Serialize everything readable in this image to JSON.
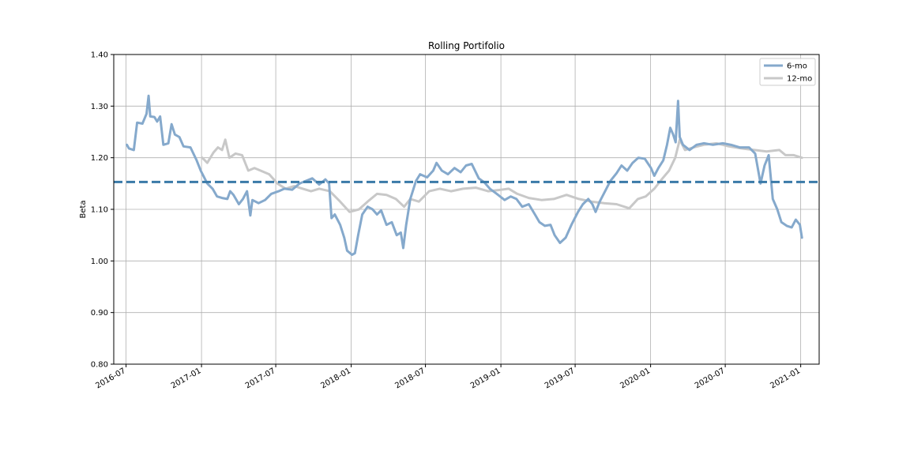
{
  "chart_data": {
    "type": "line",
    "title": "Rolling Portifolio",
    "xlabel": "",
    "ylabel": "Beta",
    "ylim": [
      0.8,
      1.4
    ],
    "xlim": [
      "2016-06-01",
      "2021-02-15"
    ],
    "grid": true,
    "legend_position": "top-right",
    "y_ticks": [
      "0.80",
      "0.90",
      "1.00",
      "1.10",
      "1.20",
      "1.30",
      "1.40"
    ],
    "x_ticks": [
      "2016-07",
      "2017-01",
      "2017-07",
      "2018-01",
      "2018-07",
      "2019-01",
      "2019-07",
      "2020-01",
      "2020-07",
      "2021-01"
    ],
    "mean_line": {
      "value": 1.153,
      "color": "#3a7aa8",
      "style": "dashed"
    },
    "series": [
      {
        "name": "6-mo",
        "color": "#85a9cc",
        "points": [
          [
            "2016-07-03",
            1.225
          ],
          [
            "2016-07-08",
            1.218
          ],
          [
            "2016-07-20",
            1.215
          ],
          [
            "2016-07-28",
            1.268
          ],
          [
            "2016-08-10",
            1.266
          ],
          [
            "2016-08-20",
            1.285
          ],
          [
            "2016-08-25",
            1.32
          ],
          [
            "2016-08-29",
            1.28
          ],
          [
            "2016-09-08",
            1.279
          ],
          [
            "2016-09-15",
            1.27
          ],
          [
            "2016-09-22",
            1.28
          ],
          [
            "2016-09-30",
            1.225
          ],
          [
            "2016-10-12",
            1.228
          ],
          [
            "2016-10-20",
            1.265
          ],
          [
            "2016-10-28",
            1.245
          ],
          [
            "2016-11-08",
            1.24
          ],
          [
            "2016-11-18",
            1.222
          ],
          [
            "2016-12-05",
            1.22
          ],
          [
            "2016-12-20",
            1.195
          ],
          [
            "2016-12-30",
            1.175
          ],
          [
            "2017-01-15",
            1.15
          ],
          [
            "2017-01-28",
            1.14
          ],
          [
            "2017-02-08",
            1.125
          ],
          [
            "2017-02-20",
            1.122
          ],
          [
            "2017-03-05",
            1.12
          ],
          [
            "2017-03-12",
            1.135
          ],
          [
            "2017-03-20",
            1.128
          ],
          [
            "2017-04-02",
            1.11
          ],
          [
            "2017-04-12",
            1.12
          ],
          [
            "2017-04-22",
            1.135
          ],
          [
            "2017-04-30",
            1.088
          ],
          [
            "2017-05-05",
            1.118
          ],
          [
            "2017-05-20",
            1.112
          ],
          [
            "2017-06-05",
            1.118
          ],
          [
            "2017-06-20",
            1.13
          ],
          [
            "2017-07-08",
            1.135
          ],
          [
            "2017-07-22",
            1.14
          ],
          [
            "2017-08-10",
            1.138
          ],
          [
            "2017-08-28",
            1.15
          ],
          [
            "2017-09-12",
            1.155
          ],
          [
            "2017-09-28",
            1.16
          ],
          [
            "2017-10-15",
            1.148
          ],
          [
            "2017-10-30",
            1.158
          ],
          [
            "2017-11-08",
            1.15
          ],
          [
            "2017-11-14",
            1.083
          ],
          [
            "2017-11-22",
            1.09
          ],
          [
            "2017-12-05",
            1.07
          ],
          [
            "2017-12-15",
            1.045
          ],
          [
            "2017-12-22",
            1.02
          ],
          [
            "2018-01-03",
            1.012
          ],
          [
            "2018-01-10",
            1.015
          ],
          [
            "2018-01-18",
            1.05
          ],
          [
            "2018-01-28",
            1.09
          ],
          [
            "2018-02-10",
            1.105
          ],
          [
            "2018-02-22",
            1.1
          ],
          [
            "2018-03-05",
            1.09
          ],
          [
            "2018-03-15",
            1.098
          ],
          [
            "2018-03-28",
            1.07
          ],
          [
            "2018-04-10",
            1.075
          ],
          [
            "2018-04-22",
            1.05
          ],
          [
            "2018-05-02",
            1.055
          ],
          [
            "2018-05-08",
            1.025
          ],
          [
            "2018-05-15",
            1.07
          ],
          [
            "2018-05-25",
            1.12
          ],
          [
            "2018-06-08",
            1.155
          ],
          [
            "2018-06-18",
            1.168
          ],
          [
            "2018-07-05",
            1.162
          ],
          [
            "2018-07-20",
            1.175
          ],
          [
            "2018-07-28",
            1.19
          ],
          [
            "2018-08-10",
            1.175
          ],
          [
            "2018-08-25",
            1.168
          ],
          [
            "2018-09-10",
            1.18
          ],
          [
            "2018-09-25",
            1.172
          ],
          [
            "2018-10-08",
            1.185
          ],
          [
            "2018-10-22",
            1.188
          ],
          [
            "2018-11-08",
            1.16
          ],
          [
            "2018-11-22",
            1.152
          ],
          [
            "2018-12-05",
            1.14
          ],
          [
            "2018-12-22",
            1.13
          ],
          [
            "2019-01-10",
            1.118
          ],
          [
            "2019-01-25",
            1.125
          ],
          [
            "2019-02-08",
            1.12
          ],
          [
            "2019-02-22",
            1.105
          ],
          [
            "2019-03-10",
            1.11
          ],
          [
            "2019-03-25",
            1.09
          ],
          [
            "2019-04-05",
            1.075
          ],
          [
            "2019-04-18",
            1.068
          ],
          [
            "2019-05-02",
            1.07
          ],
          [
            "2019-05-12",
            1.05
          ],
          [
            "2019-05-25",
            1.035
          ],
          [
            "2019-06-08",
            1.045
          ],
          [
            "2019-06-22",
            1.07
          ],
          [
            "2019-07-08",
            1.095
          ],
          [
            "2019-07-20",
            1.11
          ],
          [
            "2019-08-02",
            1.12
          ],
          [
            "2019-08-12",
            1.11
          ],
          [
            "2019-08-20",
            1.095
          ],
          [
            "2019-08-30",
            1.115
          ],
          [
            "2019-09-12",
            1.135
          ],
          [
            "2019-09-25",
            1.155
          ],
          [
            "2019-10-10",
            1.17
          ],
          [
            "2019-10-22",
            1.185
          ],
          [
            "2019-11-05",
            1.175
          ],
          [
            "2019-11-18",
            1.19
          ],
          [
            "2019-12-02",
            1.2
          ],
          [
            "2019-12-18",
            1.198
          ],
          [
            "2020-01-02",
            1.18
          ],
          [
            "2020-01-10",
            1.165
          ],
          [
            "2020-01-20",
            1.18
          ],
          [
            "2020-02-01",
            1.195
          ],
          [
            "2020-02-10",
            1.225
          ],
          [
            "2020-02-18",
            1.258
          ],
          [
            "2020-02-25",
            1.245
          ],
          [
            "2020-03-02",
            1.23
          ],
          [
            "2020-03-08",
            1.31
          ],
          [
            "2020-03-12",
            1.24
          ],
          [
            "2020-03-20",
            1.225
          ],
          [
            "2020-04-05",
            1.215
          ],
          [
            "2020-04-22",
            1.225
          ],
          [
            "2020-05-10",
            1.228
          ],
          [
            "2020-06-01",
            1.225
          ],
          [
            "2020-06-25",
            1.228
          ],
          [
            "2020-07-15",
            1.225
          ],
          [
            "2020-08-05",
            1.22
          ],
          [
            "2020-08-28",
            1.22
          ],
          [
            "2020-09-12",
            1.208
          ],
          [
            "2020-09-25",
            1.15
          ],
          [
            "2020-10-05",
            1.185
          ],
          [
            "2020-10-15",
            1.205
          ],
          [
            "2020-10-25",
            1.12
          ],
          [
            "2020-11-05",
            1.1
          ],
          [
            "2020-11-15",
            1.075
          ],
          [
            "2020-11-28",
            1.068
          ],
          [
            "2020-12-10",
            1.065
          ],
          [
            "2020-12-20",
            1.08
          ],
          [
            "2020-12-30",
            1.07
          ],
          [
            "2021-01-04",
            1.045
          ]
        ]
      },
      {
        "name": "12-mo",
        "color": "#c8c8c8",
        "points": [
          [
            "2017-01-03",
            1.2
          ],
          [
            "2017-01-15",
            1.19
          ],
          [
            "2017-01-30",
            1.21
          ],
          [
            "2017-02-10",
            1.22
          ],
          [
            "2017-02-20",
            1.215
          ],
          [
            "2017-02-28",
            1.235
          ],
          [
            "2017-03-10",
            1.2
          ],
          [
            "2017-03-25",
            1.208
          ],
          [
            "2017-04-10",
            1.205
          ],
          [
            "2017-04-25",
            1.175
          ],
          [
            "2017-05-10",
            1.18
          ],
          [
            "2017-05-25",
            1.175
          ],
          [
            "2017-06-15",
            1.168
          ],
          [
            "2017-07-05",
            1.15
          ],
          [
            "2017-07-25",
            1.14
          ],
          [
            "2017-08-15",
            1.145
          ],
          [
            "2017-09-05",
            1.14
          ],
          [
            "2017-09-25",
            1.135
          ],
          [
            "2017-10-15",
            1.14
          ],
          [
            "2017-11-10",
            1.135
          ],
          [
            "2017-12-05",
            1.115
          ],
          [
            "2017-12-28",
            1.095
          ],
          [
            "2018-01-20",
            1.1
          ],
          [
            "2018-02-10",
            1.115
          ],
          [
            "2018-03-05",
            1.13
          ],
          [
            "2018-03-28",
            1.128
          ],
          [
            "2018-04-20",
            1.12
          ],
          [
            "2018-05-10",
            1.105
          ],
          [
            "2018-05-25",
            1.12
          ],
          [
            "2018-06-15",
            1.115
          ],
          [
            "2018-07-10",
            1.135
          ],
          [
            "2018-08-05",
            1.14
          ],
          [
            "2018-09-01",
            1.135
          ],
          [
            "2018-10-01",
            1.14
          ],
          [
            "2018-11-01",
            1.142
          ],
          [
            "2018-12-01",
            1.135
          ],
          [
            "2019-01-01",
            1.138
          ],
          [
            "2019-01-20",
            1.14
          ],
          [
            "2019-02-10",
            1.13
          ],
          [
            "2019-03-10",
            1.122
          ],
          [
            "2019-04-10",
            1.118
          ],
          [
            "2019-05-10",
            1.12
          ],
          [
            "2019-06-10",
            1.128
          ],
          [
            "2019-07-10",
            1.12
          ],
          [
            "2019-08-10",
            1.115
          ],
          [
            "2019-09-10",
            1.112
          ],
          [
            "2019-10-10",
            1.11
          ],
          [
            "2019-11-10",
            1.102
          ],
          [
            "2019-12-01",
            1.12
          ],
          [
            "2019-12-20",
            1.125
          ],
          [
            "2020-01-10",
            1.14
          ],
          [
            "2020-01-30",
            1.16
          ],
          [
            "2020-02-15",
            1.175
          ],
          [
            "2020-03-01",
            1.2
          ],
          [
            "2020-03-12",
            1.235
          ],
          [
            "2020-03-25",
            1.215
          ],
          [
            "2020-04-15",
            1.22
          ],
          [
            "2020-05-10",
            1.225
          ],
          [
            "2020-06-10",
            1.228
          ],
          [
            "2020-07-10",
            1.222
          ],
          [
            "2020-08-10",
            1.218
          ],
          [
            "2020-09-10",
            1.215
          ],
          [
            "2020-10-10",
            1.212
          ],
          [
            "2020-11-10",
            1.215
          ],
          [
            "2020-11-25",
            1.205
          ],
          [
            "2020-12-15",
            1.205
          ],
          [
            "2021-01-04",
            1.2
          ]
        ]
      }
    ]
  }
}
